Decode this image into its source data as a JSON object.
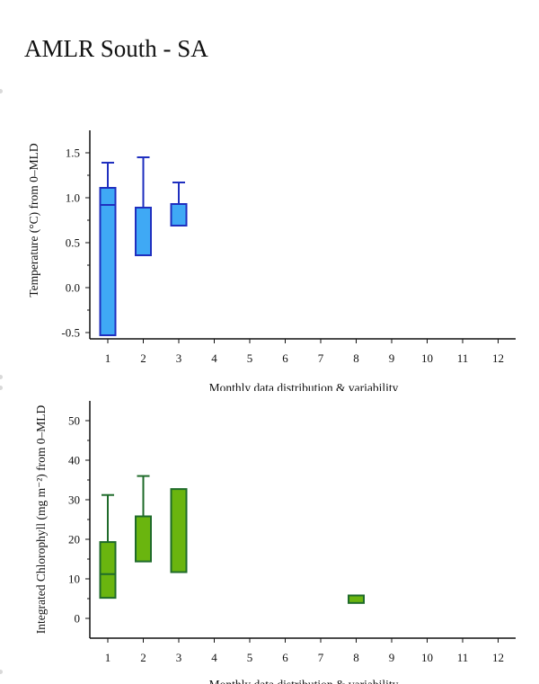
{
  "page": {
    "title": "AMLR South - SA"
  },
  "chart_data": [
    {
      "type": "box",
      "ylabel": "Temperature (°C) from 0–MLD",
      "xlabel": "Monthly data distribution & variability",
      "categories": [
        "1",
        "2",
        "3",
        "4",
        "5",
        "6",
        "7",
        "8",
        "9",
        "10",
        "11",
        "12"
      ],
      "yticks": [
        "-0.5",
        "0.0",
        "0.5",
        "1.0",
        "1.5"
      ],
      "ylim": [
        -0.55,
        1.75
      ],
      "box_fill": "#3fa9f5",
      "box_stroke": "#1f2fbf",
      "boxes": [
        {
          "month": "1",
          "low": -0.53,
          "q1": -0.53,
          "median": 0.92,
          "q3": 1.11,
          "high": 1.39
        },
        {
          "month": "2",
          "low": 0.36,
          "q1": 0.36,
          "median": 0.36,
          "q3": 0.89,
          "high": 1.45
        },
        {
          "month": "3",
          "low": 0.69,
          "q1": 0.69,
          "median": 0.69,
          "q3": 0.93,
          "high": 1.17
        }
      ]
    },
    {
      "type": "box",
      "ylabel": "Integrated Chlorophyll (mg m⁻²) from 0–MLD",
      "xlabel": "Monthly data distribution & variability",
      "categories": [
        "1",
        "2",
        "3",
        "4",
        "5",
        "6",
        "7",
        "8",
        "9",
        "10",
        "11",
        "12"
      ],
      "yticks": [
        "0",
        "10",
        "20",
        "30",
        "40",
        "50"
      ],
      "ylim": [
        -5,
        55
      ],
      "box_fill": "#6ab50f",
      "box_stroke": "#1f6b2a",
      "boxes": [
        {
          "month": "1",
          "low": 5.2,
          "q1": 5.2,
          "median": 11.2,
          "q3": 19.3,
          "high": 31.2
        },
        {
          "month": "2",
          "low": 14.4,
          "q1": 14.4,
          "median": 14.4,
          "q3": 25.8,
          "high": 36.0
        },
        {
          "month": "3",
          "low": 11.7,
          "q1": 11.7,
          "median": 11.7,
          "q3": 32.7,
          "high": 32.7
        },
        {
          "month": "8",
          "low": 3.9,
          "q1": 3.9,
          "median": 3.9,
          "q3": 5.8,
          "high": 5.8
        }
      ]
    }
  ]
}
